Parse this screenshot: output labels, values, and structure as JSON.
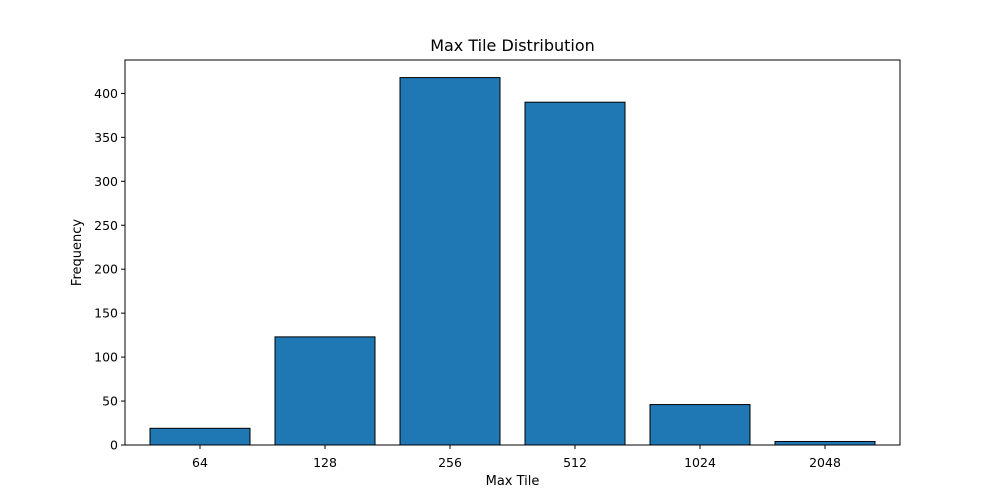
{
  "chart_data": {
    "type": "bar",
    "title": "Max Tile Distribution",
    "xlabel": "Max Tile",
    "ylabel": "Frequency",
    "categories": [
      "64",
      "128",
      "256",
      "512",
      "1024",
      "2048"
    ],
    "values": [
      19,
      123,
      418,
      390,
      46,
      4
    ],
    "ylim": [
      0,
      438
    ],
    "yticks": [
      0,
      50,
      100,
      150,
      200,
      250,
      300,
      350,
      400
    ],
    "grid": false,
    "bar_color": "#1f77b4",
    "edge_color": "#000000"
  }
}
